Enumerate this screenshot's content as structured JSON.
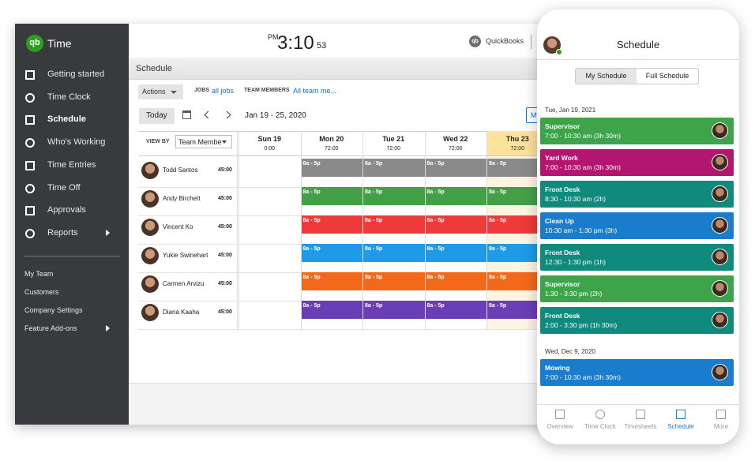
{
  "sidebar": {
    "logo": "qb",
    "brand": "Time",
    "nav": [
      "Getting started",
      "Time Clock",
      "Schedule",
      "Who's Working",
      "Time Entries",
      "Time Off",
      "Approvals",
      "Reports"
    ],
    "secondary": [
      "My Team",
      "Customers",
      "Company Settings",
      "Feature Add-ons"
    ]
  },
  "header": {
    "ampm": "PM",
    "time": "3:10",
    "seconds": "53",
    "logo": "qb",
    "quickbooks": "QuickBooks"
  },
  "schedule": {
    "title": "Schedule",
    "actions": "Actions",
    "jobs_label": "JOBS",
    "jobs_value": "all jobs",
    "members_label": "TEAM MEMBERS",
    "members_value": "All team me...",
    "today": "Today",
    "range": "Jan 19 - 25, 2020",
    "my_button": "My",
    "view_by_label": "VIEW BY",
    "view_by_value": "Team Membe",
    "days": [
      {
        "label": "Sun 19",
        "hours": "0:00"
      },
      {
        "label": "Mon 20",
        "hours": "72:00"
      },
      {
        "label": "Tue 21",
        "hours": "72:00"
      },
      {
        "label": "Wed 22",
        "hours": "72:00"
      },
      {
        "label": "Thu 23",
        "hours": "72:00"
      }
    ],
    "shift_label": "8a - 5p",
    "members": [
      {
        "name": "Todd Santos",
        "hours": "45:00",
        "color": "#8a8a8a"
      },
      {
        "name": "Andy Birchett",
        "hours": "45:00",
        "color": "#43a047"
      },
      {
        "name": "Vincent Ko",
        "hours": "45:00",
        "color": "#ee3a3a"
      },
      {
        "name": "Yukie Swinehart",
        "hours": "45:00",
        "color": "#1d9be8"
      },
      {
        "name": "Carmen Arvizu",
        "hours": "45:00",
        "color": "#f2691c"
      },
      {
        "name": "Diana Kaaha",
        "hours": "45:00",
        "color": "#6b3db6"
      }
    ]
  },
  "mobile": {
    "title": "Schedule",
    "tabs": [
      "My Schedule",
      "Full Schedule"
    ],
    "groups": [
      {
        "date": "Tue, Jan 19, 2021",
        "shifts": [
          {
            "title": "Supervisor",
            "time": "7:00 - 10:30 am (3h 30m)",
            "color": "#3ea44a"
          },
          {
            "title": "Yard Work",
            "time": "7:00 - 10:30 am (3h 30m)",
            "color": "#b2166f"
          },
          {
            "title": "Front Desk",
            "time": "8:30 - 10:30 am (2h)",
            "color": "#0f8a7d"
          },
          {
            "title": "Clean Up",
            "time": "10:30 am - 1:30 pm (3h)",
            "color": "#1a7ccd"
          },
          {
            "title": "Front Desk",
            "time": "12:30 - 1:30 pm (1h)",
            "color": "#0f8a7d"
          },
          {
            "title": "Supervisor",
            "time": "1:30 - 3:30 pm (2h)",
            "color": "#3ea44a"
          },
          {
            "title": "Front Desk",
            "time": "2:00 - 3:30 pm (1h 30m)",
            "color": "#0f8a7d"
          }
        ]
      },
      {
        "date": "Wed, Dec 9, 2020",
        "shifts": [
          {
            "title": "Mowing",
            "time": "7:00 - 10:30 am (3h 30m)",
            "color": "#1a7ccd"
          }
        ]
      }
    ],
    "nav": [
      "Overview",
      "Time Clock",
      "Timesheets",
      "Schedule",
      "More"
    ]
  }
}
